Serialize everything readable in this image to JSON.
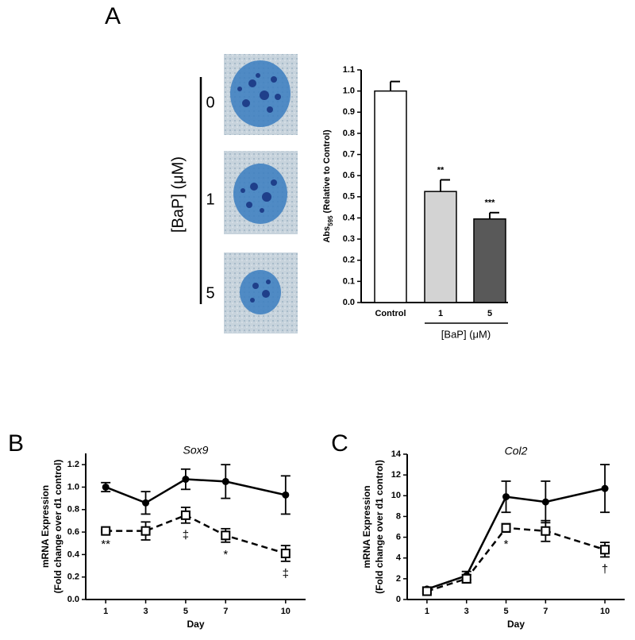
{
  "panel_labels": [
    "A",
    "B",
    "C"
  ],
  "micrographs": {
    "axis_label": "[BaP] (μM)",
    "labels": [
      "0",
      "1",
      "5"
    ]
  },
  "chart_data": [
    {
      "type": "bar",
      "y_label": [
        "Abs",
        "595",
        " (Relative to Control)"
      ],
      "categories": [
        "Control",
        "1",
        "5"
      ],
      "group_label": "[BaP] (μM)",
      "values": [
        1.0,
        0.525,
        0.395
      ],
      "errors": [
        0.045,
        0.055,
        0.03
      ],
      "annotations": [
        null,
        "**",
        "***"
      ],
      "colors": [
        "#ffffff",
        "#d3d3d3",
        "#595959"
      ],
      "ylim": [
        0,
        1.1
      ],
      "yticks": [
        {
          "value": 0,
          "label": "0.0"
        },
        0.1,
        0.2,
        0.3,
        0.4,
        0.5,
        0.6,
        0.7,
        0.8,
        0.9,
        {
          "value": 1,
          "label": "1.0"
        },
        1.1
      ]
    },
    {
      "type": "line",
      "title": "Sox9",
      "x_label": "Day",
      "y_label": [
        "mRNA Expression",
        "(Fold change over d1 control)"
      ],
      "x": [
        1,
        3,
        5,
        7,
        10
      ],
      "xlim": [
        0,
        11
      ],
      "xticks": [
        1,
        3,
        5,
        7,
        10
      ],
      "ylim": [
        0,
        1.3
      ],
      "yticks": [
        {
          "value": 0,
          "label": "0.0"
        },
        0.2,
        0.4,
        0.6,
        0.8,
        {
          "value": 1,
          "label": "1.0"
        },
        1.2
      ],
      "series": [
        {
          "color": "#000000",
          "marker": "circle",
          "dash": false,
          "values": [
            1.0,
            0.86,
            1.07,
            1.05,
            0.93
          ],
          "errors": [
            0.04,
            0.1,
            0.09,
            0.15,
            0.17
          ]
        },
        {
          "color": "#000000",
          "marker": "square",
          "dash": true,
          "values": [
            0.61,
            0.61,
            0.75,
            0.57,
            0.41
          ],
          "errors": [
            0.01,
            0.08,
            0.07,
            0.06,
            0.07
          ]
        }
      ],
      "annotations": [
        {
          "text": "**",
          "x": 1
        },
        {
          "text": "‡",
          "x": 5
        },
        {
          "text": "*",
          "x": 7
        },
        {
          "text": "‡",
          "x": 10
        }
      ]
    },
    {
      "type": "line",
      "title": "Col2",
      "x_label": "Day",
      "y_label": [
        "mRNA Expression",
        "(Fold change over d1 control)"
      ],
      "x": [
        1,
        3,
        5,
        7,
        10
      ],
      "xlim": [
        0,
        11
      ],
      "xticks": [
        1,
        3,
        5,
        7,
        10
      ],
      "ylim": [
        0,
        14
      ],
      "yticks": [
        0,
        2,
        4,
        6,
        8,
        10,
        12,
        14
      ],
      "series": [
        {
          "color": "#000000",
          "marker": "circle",
          "dash": false,
          "values": [
            1.0,
            2.3,
            9.9,
            9.4,
            10.7
          ],
          "errors": [
            0.2,
            0.4,
            1.5,
            2.0,
            2.3
          ]
        },
        {
          "color": "#000000",
          "marker": "square",
          "dash": true,
          "values": [
            0.8,
            2.0,
            6.9,
            6.6,
            4.8
          ],
          "errors": [
            0.2,
            0.4,
            0.4,
            1.0,
            0.7
          ]
        }
      ],
      "annotations": [
        {
          "text": "*",
          "x": 5
        },
        {
          "text": "†",
          "x": 10
        }
      ]
    }
  ]
}
